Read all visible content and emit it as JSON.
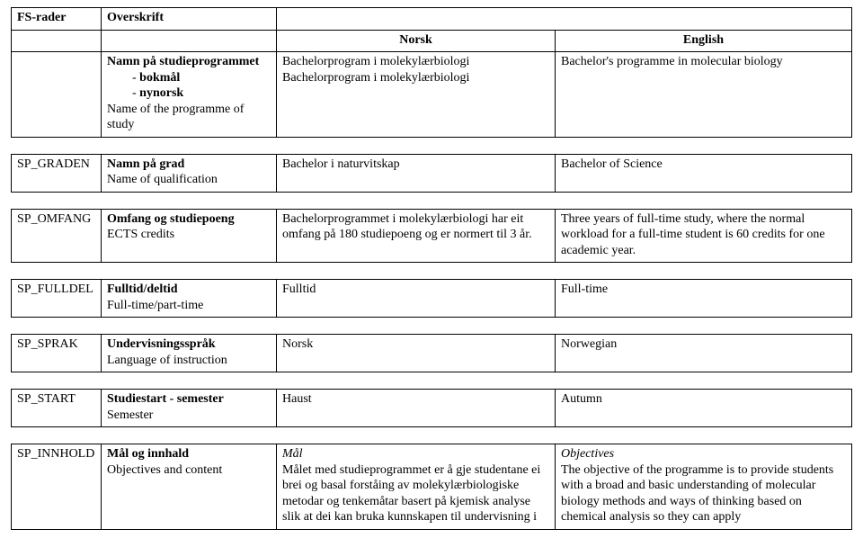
{
  "header": {
    "fs_rader": "FS-rader",
    "overskrift": "Overskrift",
    "norsk": "Norsk",
    "english": "English"
  },
  "rows": {
    "name": {
      "label_main": "Namn på studieprogrammet",
      "label_sub_bokmal": "bokmål",
      "label_sub_nynorsk": "nynorsk",
      "label_eng": "Name of the programme of study",
      "norsk_line1": "Bachelorprogram i molekylærbiologi",
      "norsk_line2": "Bachelorprogram i molekylærbiologi",
      "english": "Bachelor's programme in molecular biology"
    },
    "graden": {
      "code": "SP_GRADEN",
      "label_main": "Namn på grad",
      "label_eng": "Name of qualification",
      "norsk": "Bachelor  i naturvitskap",
      "english": "Bachelor of Science"
    },
    "omfang": {
      "code": "SP_OMFANG",
      "label_main": "Omfang og studiepoeng",
      "label_eng": "ECTS credits",
      "norsk": "Bachelorprogrammet i molekylærbiologi har eit omfang på 180 studiepoeng og er normert til 3 år.",
      "english": "Three years of full-time study, where the normal workload for a full-time student is 60 credits for one academic year."
    },
    "fulldel": {
      "code": "SP_FULLDEL",
      "label_main": "Fulltid/deltid",
      "label_eng": "Full-time/part-time",
      "norsk": "Fulltid",
      "english": "Full-time"
    },
    "sprak": {
      "code": "SP_SPRAK",
      "label_main": "Undervisningsspråk",
      "label_eng": "Language of instruction",
      "norsk": "Norsk",
      "english": "Norwegian"
    },
    "start": {
      "code": "SP_START",
      "label_main": "Studiestart - semester",
      "label_eng": "Semester",
      "norsk": "Haust",
      "english": "Autumn"
    },
    "innhold": {
      "code": "SP_INNHOLD",
      "label_main": "Mål og innhald",
      "label_eng": "Objectives and content",
      "norsk_heading": "Mål",
      "norsk_body": "Målet med studieprogrammet er å gje studentane ei brei og basal forståing av molekylærbiologiske metodar og tenkemåtar basert på kjemisk analyse slik at dei kan bruka kunnskapen til undervisning i",
      "english_heading": "Objectives",
      "english_body": "The objective of the programme is to provide students with a broad and basic understanding of molecular biology methods and ways of thinking based on chemical analysis so they can apply"
    }
  }
}
